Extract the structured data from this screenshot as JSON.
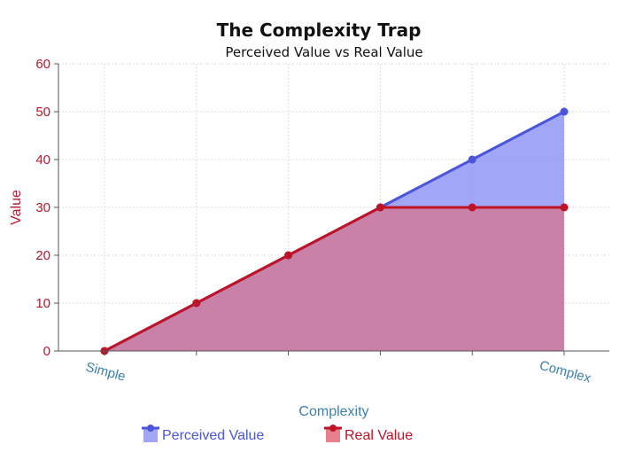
{
  "chart_data": {
    "type": "area",
    "title": "The Complexity Trap",
    "subtitle": "Perceived Value vs Real Value",
    "xlabel": "Complexity",
    "ylabel": "Value",
    "x_tick_labels": [
      "Simple",
      "",
      "",
      "",
      "",
      "Complex"
    ],
    "categories": [
      0,
      1,
      2,
      3,
      4,
      5
    ],
    "ylim": [
      0,
      60
    ],
    "yticks": [
      0,
      10,
      20,
      30,
      40,
      50,
      60
    ],
    "grid": true,
    "legend_position": "bottom",
    "series": [
      {
        "name": "Perceived Value",
        "values": [
          0,
          10,
          20,
          30,
          40,
          50
        ],
        "line_color": "#4a55d9",
        "fill_color": "#8e93f5"
      },
      {
        "name": "Real Value",
        "values": [
          0,
          10,
          20,
          30,
          30,
          30
        ],
        "line_color": "#bf1326",
        "fill_color": "#e06a78"
      }
    ]
  }
}
